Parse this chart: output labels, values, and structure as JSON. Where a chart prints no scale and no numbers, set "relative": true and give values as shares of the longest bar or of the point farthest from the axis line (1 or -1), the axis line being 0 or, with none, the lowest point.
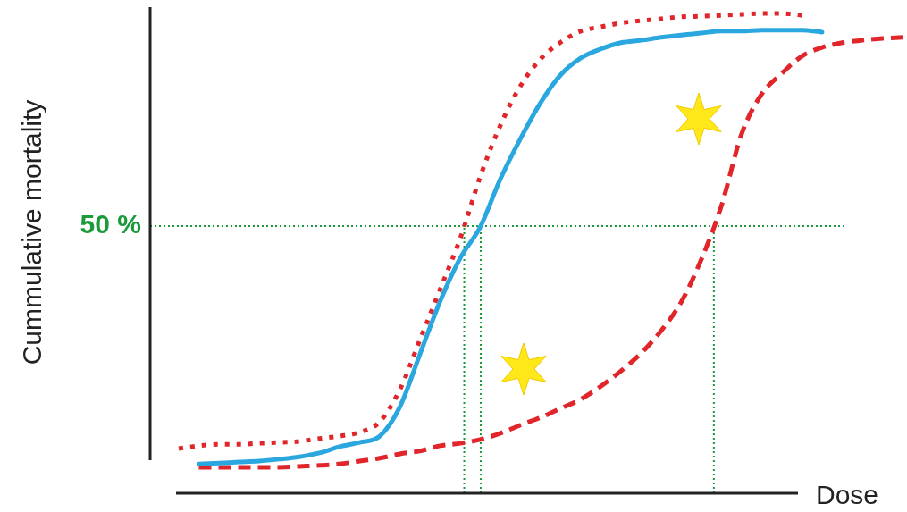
{
  "chart_data": {
    "type": "line",
    "relative": true,
    "xlabel": "Dose",
    "ylabel": "Cummulative mortality",
    "categories": [
      null,
      null,
      null,
      null,
      null,
      null,
      null,
      null,
      null,
      null,
      null,
      null,
      null,
      null,
      null,
      null,
      null,
      null,
      null,
      null,
      null,
      null,
      null,
      null,
      null,
      null,
      null,
      null,
      null,
      null,
      null,
      null,
      null,
      null,
      null,
      null,
      null
    ],
    "series": [
      {
        "color": "#e0262b",
        "line_style": "dotted",
        "values": [
          0.093,
          0.099,
          0.102,
          0.102,
          0.104,
          0.106,
          0.108,
          0.114,
          0.119,
          0.127,
          0.149,
          0.216,
          0.32,
          0.425,
          0.531,
          0.66,
          0.767,
          0.849,
          0.905,
          0.94,
          0.963,
          0.972,
          0.98,
          0.985,
          0.989,
          0.993,
          0.994,
          0.996,
          0.998,
          1,
          1,
          0.996,
          null,
          null,
          null,
          null,
          null
        ]
      },
      {
        "color": "#2aa7df",
        "line_style": "solid",
        "values": [
          null,
          0.061,
          0.063,
          0.065,
          0.067,
          0.071,
          0.076,
          0.084,
          0.097,
          0.106,
          0.119,
          0.18,
          0.29,
          0.4,
          0.49,
          0.555,
          0.655,
          0.739,
          0.814,
          0.872,
          0.907,
          0.926,
          0.939,
          0.944,
          0.95,
          0.955,
          0.959,
          0.963,
          0.963,
          0.965,
          0.965,
          0.965,
          0.961,
          null,
          null,
          null,
          null
        ]
      },
      {
        "color": "#e0262b",
        "line_style": "dashed",
        "values": [
          null,
          0.054,
          0.054,
          0.054,
          0.054,
          0.054,
          0.056,
          0.058,
          0.061,
          0.067,
          0.073,
          0.082,
          0.088,
          0.099,
          0.104,
          0.112,
          0.125,
          0.142,
          0.158,
          0.177,
          0.196,
          0.223,
          0.255,
          0.292,
          0.339,
          0.399,
          0.488,
          0.6,
          0.749,
          0.832,
          0.875,
          0.911,
          0.929,
          0.939,
          0.944,
          0.948,
          0.95
        ]
      }
    ],
    "ref_lines": [
      {
        "axis": "y",
        "value": 0.557,
        "color": "#1a9a3a",
        "line_style": "dotted"
      }
    ],
    "annotations": [
      "50 %"
    ]
  }
}
